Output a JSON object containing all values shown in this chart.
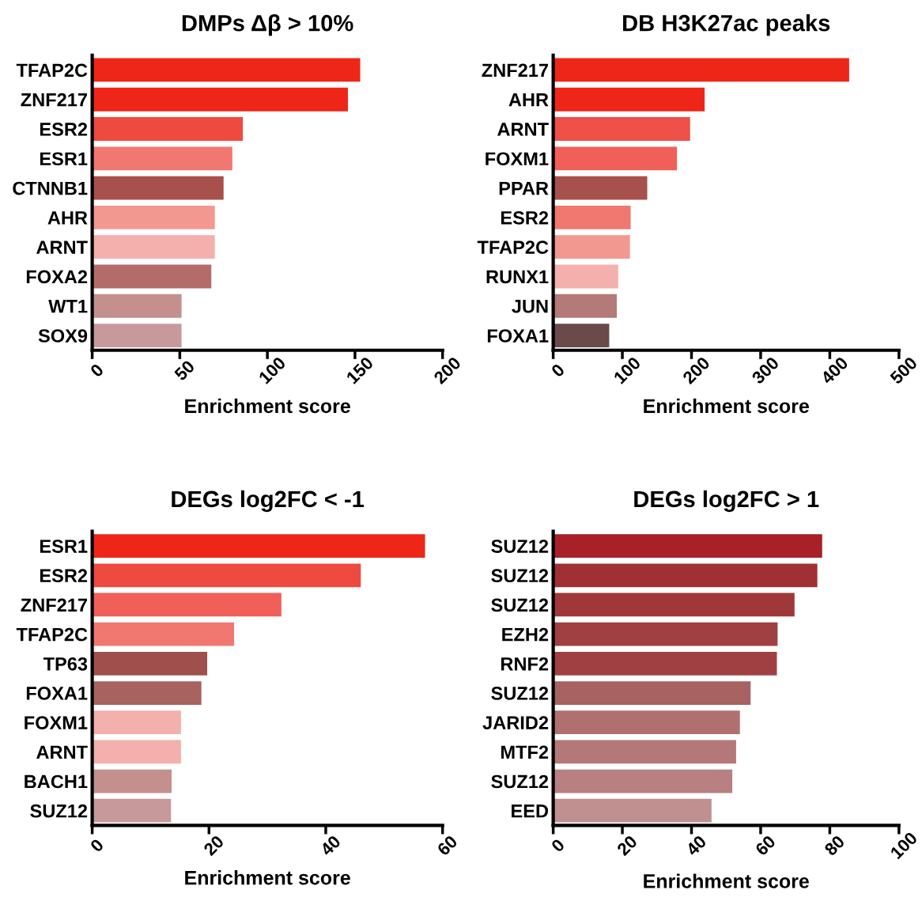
{
  "chart_data": [
    {
      "type": "bar",
      "orientation": "horizontal",
      "title": "DMPs Δβ > 10%",
      "xlabel": "Enrichment score",
      "categories": [
        "TFAP2C",
        "ZNF217",
        "ESR2",
        "ESR1",
        "CTNNB1",
        "AHR",
        "ARNT",
        "FOXA2",
        "WT1",
        "SOX9"
      ],
      "values": [
        153,
        146,
        86,
        80,
        75,
        70,
        70,
        68,
        51,
        51
      ],
      "colors": [
        "#ee2618",
        "#ee2618",
        "#ef4a40",
        "#f17870",
        "#a8504c",
        "#f39890",
        "#f4b0ac",
        "#b46c6a",
        "#c4908e",
        "#c8999a"
      ],
      "xlim": [
        0,
        200
      ],
      "xticks": [
        0,
        50,
        100,
        150,
        200
      ],
      "grid": false,
      "legend": false
    },
    {
      "type": "bar",
      "orientation": "horizontal",
      "title": "DB H3K27ac peaks",
      "xlabel": "Enrichment score",
      "categories": [
        "ZNF217",
        "AHR",
        "ARNT",
        "FOXM1",
        "PPAR",
        "ESR2",
        "TFAP2C",
        "RUNX1",
        "JUN",
        "FOXA1"
      ],
      "values": [
        428,
        219,
        198,
        179,
        136,
        112,
        111,
        94,
        92,
        81
      ],
      "colors": [
        "#ee2618",
        "#ee2618",
        "#ef5048",
        "#f06058",
        "#a8504c",
        "#f17870",
        "#f39890",
        "#f4b0ac",
        "#b47a78",
        "#6a4a4a"
      ],
      "xlim": [
        0,
        500
      ],
      "xticks": [
        0,
        100,
        200,
        300,
        400,
        500
      ],
      "grid": false,
      "legend": false
    },
    {
      "type": "bar",
      "orientation": "horizontal",
      "title": "DEGs log2FC < -1",
      "xlabel": "Enrichment score",
      "categories": [
        "ESR1",
        "ESR2",
        "ZNF217",
        "TFAP2C",
        "TP63",
        "FOXA1",
        "FOXM1",
        "ARNT",
        "BACH1",
        "SUZ12"
      ],
      "values": [
        57,
        46,
        32.4,
        24.3,
        19.7,
        18.7,
        15.2,
        15.2,
        13.6,
        13.5
      ],
      "colors": [
        "#ee2618",
        "#ef4a40",
        "#f06058",
        "#f17870",
        "#a0504c",
        "#a86260",
        "#f4b0ac",
        "#f4b0ac",
        "#c4908e",
        "#c8999a"
      ],
      "xlim": [
        0,
        60
      ],
      "xticks": [
        0,
        20,
        40,
        60
      ],
      "grid": false,
      "legend": false
    },
    {
      "type": "bar",
      "orientation": "horizontal",
      "title": "DEGs log2FC > 1",
      "xlabel": "Enrichment score",
      "categories": [
        "SUZ12",
        "SUZ12",
        "SUZ12",
        "EZH2",
        "RNF2",
        "SUZ12",
        "JARID2",
        "MTF2",
        "SUZ12",
        "EED"
      ],
      "values": [
        77.8,
        76.4,
        69.8,
        64.9,
        64.7,
        57.1,
        54,
        52.9,
        51.8,
        45.8
      ],
      "colors": [
        "#a82028",
        "#a03034",
        "#a0383a",
        "#a04042",
        "#a04042",
        "#a86262",
        "#b07070",
        "#b47878",
        "#b88080",
        "#c09090"
      ],
      "xlim": [
        0,
        100
      ],
      "xticks": [
        0,
        20,
        40,
        60,
        80,
        100
      ],
      "grid": false,
      "legend": false
    }
  ]
}
